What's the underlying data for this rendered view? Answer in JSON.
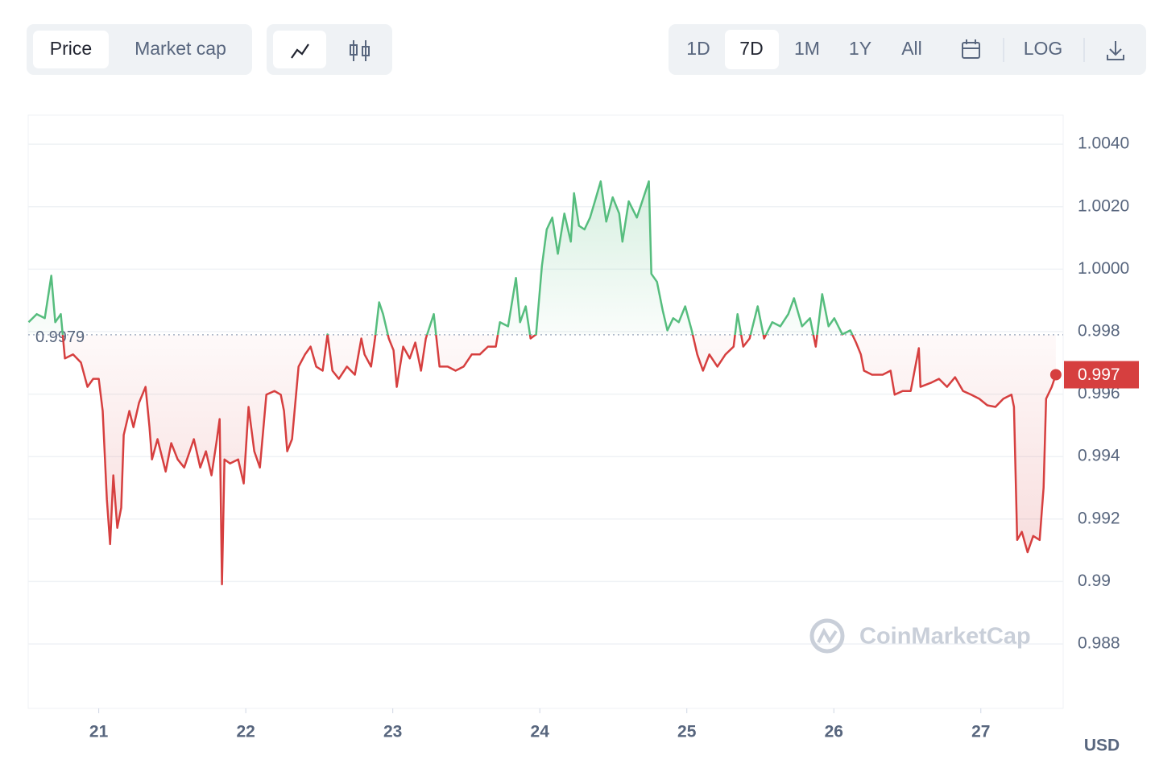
{
  "controls": {
    "metric_tabs": [
      "Price",
      "Market cap"
    ],
    "ranges": [
      "1D",
      "7D",
      "1M",
      "1Y",
      "All"
    ],
    "log": "LOG"
  },
  "chart_data": {
    "type": "line",
    "currency": "USD",
    "watermark": "CoinMarketCap",
    "colors": {
      "above": "#56bd7e",
      "below": "#d63f3f"
    },
    "baseline": 0.9979,
    "last_value_label": "0.997",
    "xlim": [
      20.52,
      27.56
    ],
    "xticks": [
      21,
      22,
      23,
      24,
      25,
      26,
      27
    ],
    "ylim": [
      0.98594,
      1.00493
    ],
    "yticks": [
      0.988,
      0.99,
      0.992,
      0.994,
      0.996,
      0.998,
      {
        "value": 1,
        "label": "1.0000"
      },
      {
        "value": 1.002,
        "label": "1.0020"
      },
      {
        "value": 1.004,
        "label": "1.0040"
      }
    ],
    "grid": true,
    "x": [
      20.523,
      20.578,
      20.633,
      20.677,
      20.704,
      20.742,
      20.77,
      20.825,
      20.879,
      20.923,
      20.962,
      21.0,
      21.027,
      21.055,
      21.077,
      21.099,
      21.126,
      21.153,
      21.17,
      21.208,
      21.236,
      21.274,
      21.318,
      21.345,
      21.362,
      21.4,
      21.455,
      21.493,
      21.537,
      21.581,
      21.619,
      21.647,
      21.69,
      21.729,
      21.767,
      21.8,
      21.822,
      21.838,
      21.855,
      21.893,
      21.948,
      21.986,
      22.019,
      22.058,
      22.096,
      22.14,
      22.195,
      22.238,
      22.26,
      22.282,
      22.315,
      22.359,
      22.403,
      22.441,
      22.479,
      22.523,
      22.556,
      22.589,
      22.633,
      22.688,
      22.742,
      22.786,
      22.808,
      22.852,
      22.879,
      22.907,
      22.934,
      22.973,
      23.005,
      23.027,
      23.071,
      23.115,
      23.153,
      23.192,
      23.225,
      23.279,
      23.318,
      23.373,
      23.427,
      23.482,
      23.537,
      23.592,
      23.647,
      23.701,
      23.729,
      23.784,
      23.838,
      23.866,
      23.904,
      23.937,
      23.975,
      24.014,
      24.047,
      24.085,
      24.123,
      24.167,
      24.211,
      24.233,
      24.266,
      24.304,
      24.342,
      24.375,
      24.414,
      24.452,
      24.496,
      24.54,
      24.562,
      24.605,
      24.66,
      24.715,
      24.742,
      24.759,
      24.797,
      24.836,
      24.868,
      24.907,
      24.945,
      24.989,
      25.033,
      25.071,
      25.11,
      25.153,
      25.208,
      25.263,
      25.318,
      25.345,
      25.384,
      25.427,
      25.482,
      25.526,
      25.581,
      25.636,
      25.69,
      25.729,
      25.784,
      25.838,
      25.877,
      25.921,
      25.964,
      26.003,
      26.058,
      26.112,
      26.151,
      26.184,
      26.205,
      26.26,
      26.332,
      26.386,
      26.414,
      26.468,
      26.523,
      26.578,
      26.589,
      26.66,
      26.715,
      26.77,
      26.825,
      26.879,
      26.934,
      26.989,
      27.044,
      27.099,
      27.153,
      27.208,
      27.225,
      27.247,
      27.279,
      27.318,
      27.356,
      27.4,
      27.427,
      27.444,
      27.482,
      27.51
    ],
    "values": [
      0.9983,
      0.99856,
      0.99843,
      0.99979,
      0.9983,
      0.99856,
      0.99714,
      0.99727,
      0.99701,
      0.99623,
      0.99649,
      0.99649,
      0.99546,
      0.99262,
      0.9912,
      0.9934,
      0.99172,
      0.99236,
      0.99469,
      0.99546,
      0.99494,
      0.99572,
      0.99623,
      0.99494,
      0.99391,
      0.99456,
      0.99352,
      0.99443,
      0.99391,
      0.99365,
      0.99417,
      0.99456,
      0.99365,
      0.99417,
      0.9934,
      0.99443,
      0.9952,
      0.98991,
      0.99391,
      0.99378,
      0.99391,
      0.99314,
      0.99559,
      0.99417,
      0.99365,
      0.99598,
      0.9961,
      0.99598,
      0.99546,
      0.99417,
      0.99456,
      0.99688,
      0.99727,
      0.99752,
      0.99688,
      0.99675,
      0.99791,
      0.99675,
      0.99649,
      0.99688,
      0.99662,
      0.99778,
      0.99727,
      0.99688,
      0.99778,
      0.99894,
      0.99856,
      0.99778,
      0.9974,
      0.99623,
      0.99752,
      0.99714,
      0.99765,
      0.99675,
      0.99778,
      0.99856,
      0.99688,
      0.99688,
      0.99675,
      0.99688,
      0.99727,
      0.99727,
      0.99752,
      0.99752,
      0.9983,
      0.99817,
      0.99972,
      0.9983,
      0.99881,
      0.99778,
      0.99791,
      1.0001,
      1.00127,
      1.00165,
      1.00049,
      1.00178,
      1.00088,
      1.00243,
      1.00139,
      1.00127,
      1.00165,
      1.00217,
      1.00281,
      1.00152,
      1.0023,
      1.00178,
      1.00088,
      1.00217,
      1.00165,
      1.00243,
      1.00281,
      0.99985,
      0.99959,
      0.99868,
      0.99804,
      0.99843,
      0.9983,
      0.99881,
      0.99804,
      0.99727,
      0.99675,
      0.99727,
      0.99688,
      0.99727,
      0.99752,
      0.99856,
      0.99752,
      0.99778,
      0.99881,
      0.99778,
      0.9983,
      0.99817,
      0.99856,
      0.99907,
      0.99817,
      0.99843,
      0.99752,
      0.9992,
      0.99817,
      0.99843,
      0.99791,
      0.99804,
      0.99765,
      0.99727,
      0.99675,
      0.99662,
      0.99662,
      0.99675,
      0.99598,
      0.9961,
      0.9961,
      0.99747,
      0.99623,
      0.99636,
      0.99649,
      0.99623,
      0.99654,
      0.9961,
      0.99598,
      0.99585,
      0.99564,
      0.99559,
      0.99585,
      0.99598,
      0.99559,
      0.99133,
      0.99159,
      0.99094,
      0.99146,
      0.99133,
      0.99301,
      0.99585,
      0.99623,
      0.99662
    ]
  }
}
